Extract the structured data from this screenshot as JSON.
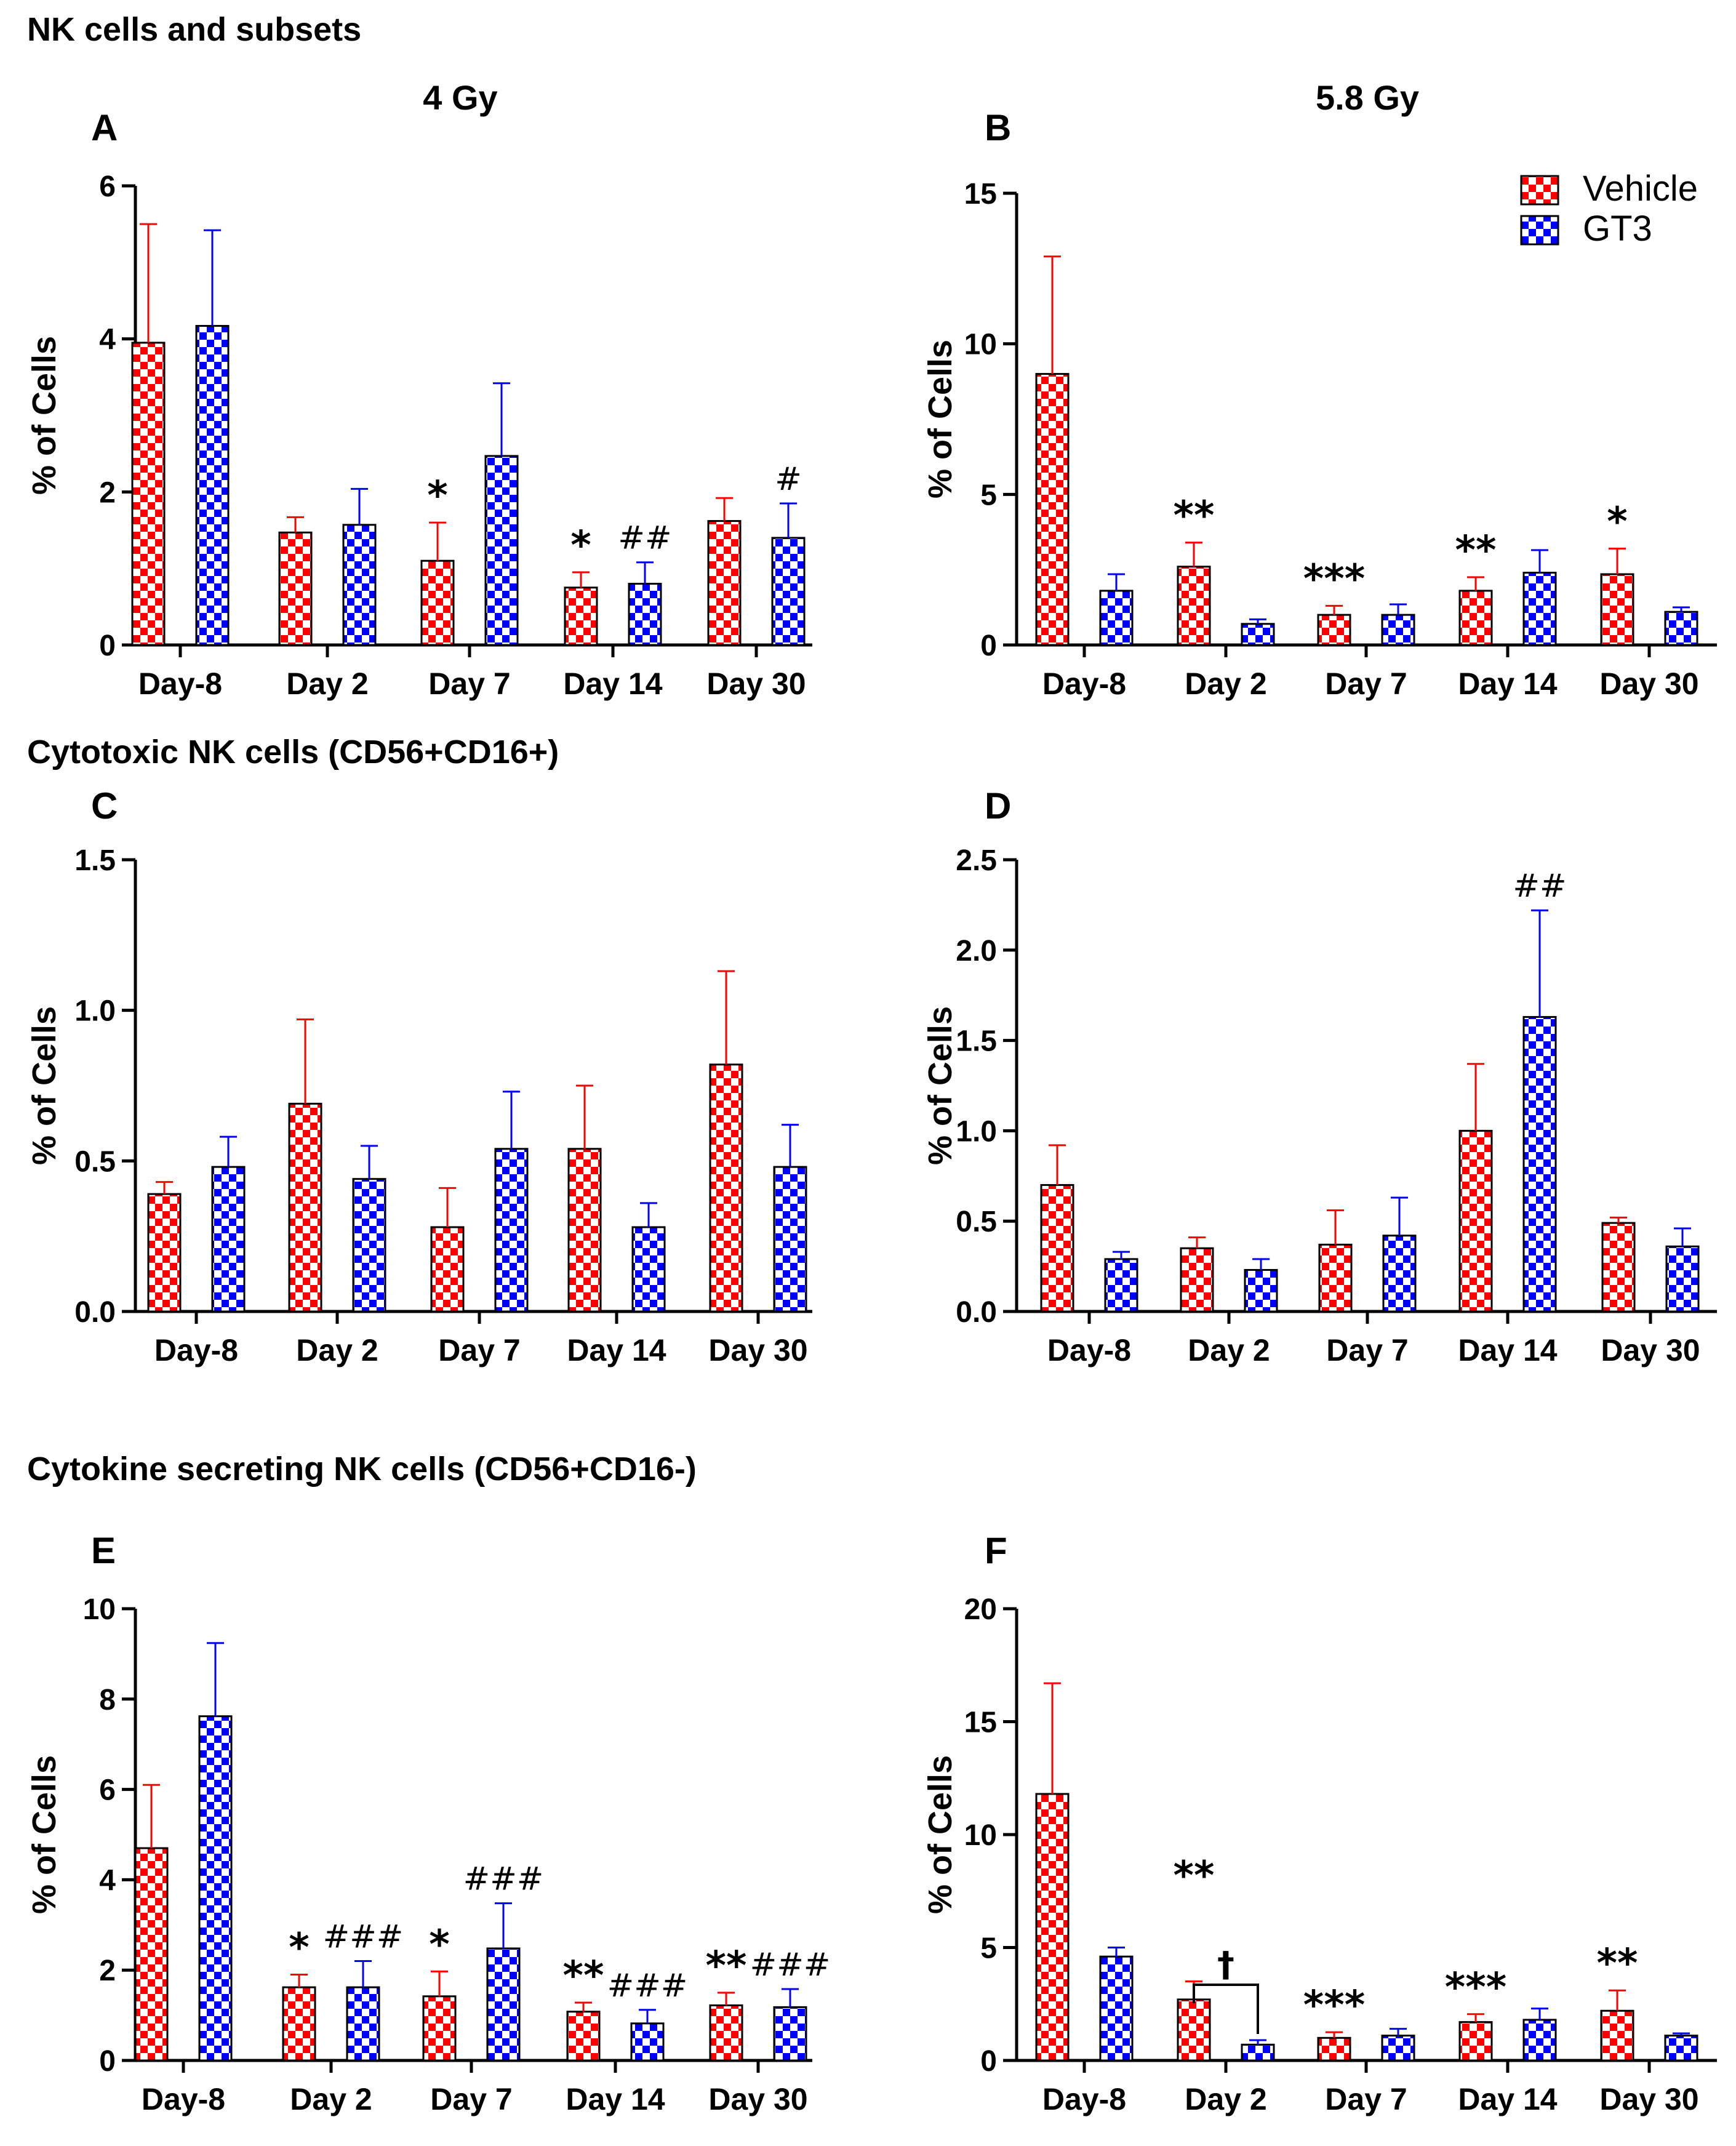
{
  "headings": {
    "section1": "NK cells and subsets",
    "section2": "Cytotoxic NK cells (CD56+CD16+)",
    "section3": "Cytokine secreting NK cells (CD56+CD16-)",
    "col_left": "4 Gy",
    "col_right": "5.8 Gy"
  },
  "legend": {
    "vehicle": "Vehicle",
    "gt3": "GT3"
  },
  "colors": {
    "vehicle": "#ff0000",
    "gt3": "#0000ff",
    "axis": "#000000"
  },
  "chart_data": [
    {
      "panel": "A",
      "type": "bar",
      "title": "4 Gy",
      "ylabel": "% of Cells",
      "xlabel": "",
      "ylim": [
        0,
        6
      ],
      "ticks": [
        0,
        2,
        4,
        6
      ],
      "tick_labels": [
        "0",
        "2",
        "4",
        "6"
      ],
      "categories": [
        "Day-8",
        "Day 2",
        "Day 7",
        "Day 14",
        "Day 30"
      ],
      "series": [
        {
          "name": "Vehicle",
          "values": [
            3.95,
            1.47,
            1.1,
            0.75,
            1.62
          ],
          "errors": [
            1.55,
            0.2,
            0.5,
            0.2,
            0.3
          ]
        },
        {
          "name": "GT3",
          "values": [
            4.17,
            1.57,
            2.47,
            0.8,
            1.4
          ],
          "errors": [
            1.25,
            0.47,
            0.95,
            0.28,
            0.45
          ]
        }
      ],
      "annotations": [
        {
          "category": 2,
          "series": 0,
          "text": "*"
        },
        {
          "category": 3,
          "series": 0,
          "text": "*"
        },
        {
          "category": 3,
          "series": 1,
          "text": "##"
        },
        {
          "category": 4,
          "series": 1,
          "text": "#"
        }
      ]
    },
    {
      "panel": "B",
      "type": "bar",
      "title": "5.8 Gy",
      "ylabel": "% of Cells",
      "xlabel": "",
      "ylim": [
        0,
        15
      ],
      "ticks": [
        0,
        5,
        10,
        15
      ],
      "tick_labels": [
        "0",
        "5",
        "10",
        "15"
      ],
      "categories": [
        "Day-8",
        "Day 2",
        "Day 7",
        "Day 14",
        "Day 30"
      ],
      "series": [
        {
          "name": "Vehicle",
          "values": [
            9.0,
            2.6,
            1.0,
            1.8,
            2.35
          ],
          "errors": [
            3.9,
            0.8,
            0.3,
            0.45,
            0.85
          ]
        },
        {
          "name": "GT3",
          "values": [
            1.8,
            0.7,
            1.0,
            2.4,
            1.1
          ],
          "errors": [
            0.55,
            0.15,
            0.35,
            0.75,
            0.15
          ]
        }
      ],
      "annotations": [
        {
          "category": 1,
          "series": 0,
          "text": "**"
        },
        {
          "category": 2,
          "series": 0,
          "text": "***"
        },
        {
          "category": 3,
          "series": 0,
          "text": "**"
        },
        {
          "category": 4,
          "series": 0,
          "text": "*"
        }
      ]
    },
    {
      "panel": "C",
      "type": "bar",
      "title": "",
      "ylabel": "% of Cells",
      "xlabel": "",
      "ylim": [
        0,
        1.5
      ],
      "ticks": [
        0,
        0.5,
        1.0,
        1.5
      ],
      "tick_labels": [
        "0.0",
        "0.5",
        "1.0",
        "1.5"
      ],
      "categories": [
        "Day-8",
        "Day 2",
        "Day 7",
        "Day 14",
        "Day 30"
      ],
      "series": [
        {
          "name": "Vehicle",
          "values": [
            0.39,
            0.69,
            0.28,
            0.54,
            0.82
          ],
          "errors": [
            0.04,
            0.28,
            0.13,
            0.21,
            0.31
          ]
        },
        {
          "name": "GT3",
          "values": [
            0.48,
            0.44,
            0.54,
            0.28,
            0.48
          ],
          "errors": [
            0.1,
            0.11,
            0.19,
            0.08,
            0.14
          ]
        }
      ],
      "annotations": []
    },
    {
      "panel": "D",
      "type": "bar",
      "title": "",
      "ylabel": "% of Cells",
      "xlabel": "",
      "ylim": [
        0,
        2.5
      ],
      "ticks": [
        0,
        0.5,
        1.0,
        1.5,
        2.0,
        2.5
      ],
      "tick_labels": [
        "0.0",
        "0.5",
        "1.0",
        "1.5",
        "2.0",
        "2.5"
      ],
      "categories": [
        "Day-8",
        "Day 2",
        "Day 7",
        "Day 14",
        "Day 30"
      ],
      "series": [
        {
          "name": "Vehicle",
          "values": [
            0.7,
            0.35,
            0.37,
            1.0,
            0.49
          ],
          "errors": [
            0.22,
            0.06,
            0.19,
            0.37,
            0.03
          ]
        },
        {
          "name": "GT3",
          "values": [
            0.29,
            0.23,
            0.42,
            1.63,
            0.36
          ],
          "errors": [
            0.04,
            0.06,
            0.21,
            0.59,
            0.1
          ]
        }
      ],
      "annotations": [
        {
          "category": 3,
          "series": 1,
          "text": "##"
        }
      ]
    },
    {
      "panel": "E",
      "type": "bar",
      "title": "",
      "ylabel": "% of Cells",
      "xlabel": "",
      "ylim": [
        0,
        10
      ],
      "ticks": [
        0,
        2,
        4,
        6,
        8,
        10
      ],
      "tick_labels": [
        "0",
        "2",
        "4",
        "6",
        "8",
        "10"
      ],
      "categories": [
        "Day-8",
        "Day 2",
        "Day 7",
        "Day 14",
        "Day 30"
      ],
      "series": [
        {
          "name": "Vehicle",
          "values": [
            4.7,
            1.62,
            1.42,
            1.08,
            1.22
          ],
          "errors": [
            1.4,
            0.28,
            0.55,
            0.2,
            0.28
          ]
        },
        {
          "name": "GT3",
          "values": [
            7.62,
            1.62,
            2.48,
            0.82,
            1.18
          ],
          "errors": [
            1.62,
            0.58,
            1.0,
            0.3,
            0.4
          ]
        }
      ],
      "annotations": [
        {
          "category": 1,
          "series": 0,
          "text": "*"
        },
        {
          "category": 1,
          "series": 1,
          "text": "###"
        },
        {
          "category": 2,
          "series": 0,
          "text": "*"
        },
        {
          "category": 2,
          "series": 1,
          "text": "###"
        },
        {
          "category": 3,
          "series": 0,
          "text": "**"
        },
        {
          "category": 3,
          "series": 1,
          "text": "###"
        },
        {
          "category": 4,
          "series": 0,
          "text": "**"
        },
        {
          "category": 4,
          "series": 1,
          "text": "###"
        }
      ]
    },
    {
      "panel": "F",
      "type": "bar",
      "title": "",
      "ylabel": "% of Cells",
      "xlabel": "",
      "ylim": [
        0,
        20
      ],
      "ticks": [
        0,
        5,
        10,
        15,
        20
      ],
      "tick_labels": [
        "0",
        "5",
        "10",
        "15",
        "20"
      ],
      "categories": [
        "Day-8",
        "Day 2",
        "Day 7",
        "Day 14",
        "Day 30"
      ],
      "series": [
        {
          "name": "Vehicle",
          "values": [
            11.8,
            2.7,
            1.0,
            1.7,
            2.2
          ],
          "errors": [
            4.9,
            0.8,
            0.25,
            0.35,
            0.9
          ]
        },
        {
          "name": "GT3",
          "values": [
            4.6,
            0.7,
            1.1,
            1.8,
            1.1
          ],
          "errors": [
            0.4,
            0.2,
            0.3,
            0.5,
            0.1
          ]
        }
      ],
      "annotations": [
        {
          "category": 1,
          "series": 0,
          "text": "**"
        },
        {
          "category": 1,
          "series": 1,
          "text": "†",
          "bracket": true
        },
        {
          "category": 2,
          "series": 0,
          "text": "***"
        },
        {
          "category": 3,
          "series": 0,
          "text": "***"
        },
        {
          "category": 4,
          "series": 0,
          "text": "**"
        }
      ]
    }
  ]
}
